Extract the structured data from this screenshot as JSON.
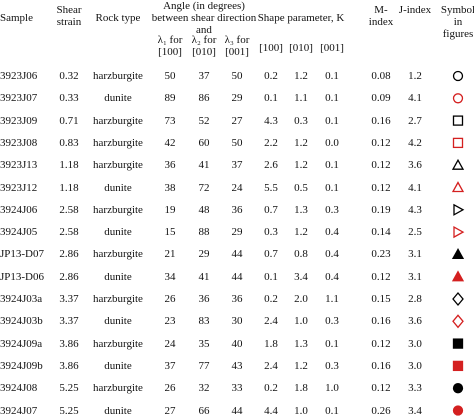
{
  "header": {
    "sample": "Sample",
    "shear_strain": "Shear strain",
    "rock_type": "Rock type",
    "angle": "Angle (in degrees) between shear direction and",
    "angle_cols": [
      "λ₁ for [100]",
      "λ₂ for [010]",
      "λ₃ for [001]"
    ],
    "shape": "Shape parameter, K",
    "shape_cols": [
      "[100]",
      "[010]",
      "[001]"
    ],
    "m_index": "M-index",
    "j_index": "J-index",
    "symbol": "Symbol in figures"
  },
  "table": {
    "rows": [
      [
        "3923J06",
        "0.32",
        "harzburgite",
        "50",
        "37",
        "50",
        "0.2",
        "1.2",
        "0.1",
        "0.08",
        "1.2"
      ],
      [
        "3923J07",
        "0.33",
        "dunite",
        "89",
        "86",
        "29",
        "0.1",
        "1.1",
        "0.1",
        "0.09",
        "4.1"
      ],
      [
        "3923J09",
        "0.71",
        "harzburgite",
        "73",
        "52",
        "27",
        "4.3",
        "0.3",
        "0.1",
        "0.16",
        "2.7"
      ],
      [
        "3923J08",
        "0.83",
        "harzburgite",
        "42",
        "60",
        "50",
        "2.2",
        "1.2",
        "0.0",
        "0.12",
        "4.2"
      ],
      [
        "3923J13",
        "1.18",
        "harzburgite",
        "36",
        "41",
        "37",
        "2.6",
        "1.2",
        "0.1",
        "0.12",
        "3.6"
      ],
      [
        "3923J12",
        "1.18",
        "dunite",
        "38",
        "72",
        "24",
        "5.5",
        "0.5",
        "0.1",
        "0.12",
        "4.1"
      ],
      [
        "3924J06",
        "2.58",
        "harzburgite",
        "19",
        "48",
        "36",
        "0.7",
        "1.3",
        "0.3",
        "0.19",
        "4.3"
      ],
      [
        "3924J05",
        "2.58",
        "dunite",
        "15",
        "88",
        "29",
        "0.3",
        "1.2",
        "0.4",
        "0.14",
        "2.5"
      ],
      [
        "JP13-D07",
        "2.86",
        "harzburgite",
        "21",
        "29",
        "44",
        "0.7",
        "0.8",
        "0.4",
        "0.23",
        "3.1"
      ],
      [
        "JP13-D06",
        "2.86",
        "dunite",
        "34",
        "41",
        "44",
        "0.1",
        "3.4",
        "0.4",
        "0.12",
        "3.1"
      ],
      [
        "3924J03a",
        "3.37",
        "harzburgite",
        "26",
        "36",
        "36",
        "0.2",
        "2.0",
        "1.1",
        "0.15",
        "2.8"
      ],
      [
        "3924J03b",
        "3.37",
        "dunite",
        "23",
        "83",
        "30",
        "2.4",
        "1.0",
        "0.3",
        "0.16",
        "3.6"
      ],
      [
        "3924J09a",
        "3.86",
        "harzburgite",
        "24",
        "35",
        "40",
        "1.8",
        "1.3",
        "0.1",
        "0.12",
        "3.0"
      ],
      [
        "3924J09b",
        "3.86",
        "dunite",
        "37",
        "77",
        "43",
        "2.4",
        "1.2",
        "0.3",
        "0.16",
        "3.0"
      ],
      [
        "3924J08",
        "5.25",
        "harzburgite",
        "26",
        "32",
        "33",
        "0.2",
        "1.8",
        "1.0",
        "0.12",
        "3.3"
      ],
      [
        "3924J07",
        "5.25",
        "dunite",
        "27",
        "66",
        "44",
        "4.4",
        "1.0",
        "0.1",
        "0.26",
        "3.4"
      ]
    ]
  }
}
